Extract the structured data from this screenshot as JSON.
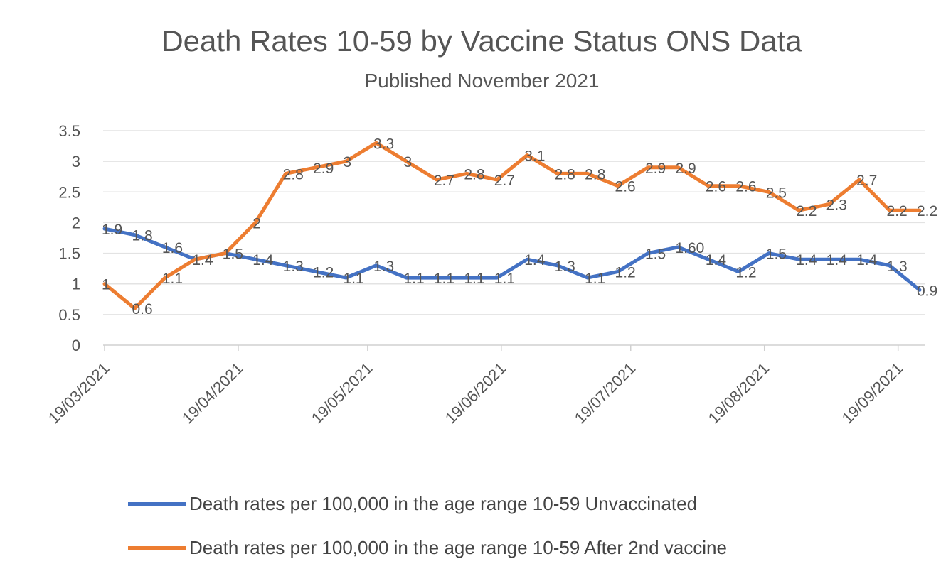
{
  "chart_data": {
    "type": "line",
    "title": "Death Rates 10-59  by Vaccine Status ONS Data",
    "subtitle": "Published November 2021",
    "xlabel": "",
    "ylabel": "",
    "ylim": [
      0,
      3.5
    ],
    "yticks": [
      "0",
      "0.5",
      "1",
      "1.5",
      "2",
      "2.5",
      "3",
      "3.5"
    ],
    "x_start": "19/03/2021",
    "x_step_days": 7,
    "xtick_labels": [
      "19/03/2021",
      "19/04/2021",
      "19/05/2021",
      "19/06/2021",
      "19/07/2021",
      "19/08/2021",
      "19/09/2021"
    ],
    "grid": true,
    "legend_position": "bottom",
    "series": [
      {
        "name": "Death rates per 100,000 in the age range 10-59 Unvaccinated",
        "color": "#4472C4",
        "values": [
          1.9,
          1.8,
          1.6,
          1.4,
          1.5,
          1.4,
          1.3,
          1.2,
          1.1,
          1.3,
          1.1,
          1.1,
          1.1,
          1.1,
          1.4,
          1.3,
          1.1,
          1.2,
          1.5,
          1.6,
          1.4,
          1.2,
          1.5,
          1.4,
          1.4,
          1.4,
          1.3,
          0.9
        ],
        "labels": [
          "1.9",
          "1.8",
          "1.6",
          "1.4",
          "1.5",
          "1.4",
          "1.3",
          "1.2",
          "1.1",
          "1.3",
          "1.1",
          "1.1",
          "1.1",
          "1.1",
          "1.4",
          "1.3",
          "1.1",
          "1.2",
          "1.5",
          "1.60",
          "1.4",
          "1.2",
          "1.5",
          "1.4",
          "1.4",
          "1.4",
          "1.3",
          "0.9"
        ]
      },
      {
        "name": "Death rates per 100,000 in the age range 10-59 After 2nd  vaccine",
        "color": "#ED7D31",
        "values": [
          1,
          0.6,
          1.1,
          1.4,
          1.5,
          2,
          2.8,
          2.9,
          3,
          3.3,
          3,
          2.7,
          2.8,
          2.7,
          3.1,
          2.8,
          2.8,
          2.6,
          2.9,
          2.9,
          2.6,
          2.6,
          2.5,
          2.2,
          2.3,
          2.7,
          2.2,
          2.2
        ],
        "labels": [
          "1",
          "0.6",
          "1.1",
          "1.4",
          "1.5",
          "2",
          "2.8",
          "2.9",
          "3",
          "3.3",
          "3",
          "2.7",
          "2.8",
          "2.7",
          "3.1",
          "2.8",
          "2.8",
          "2.6",
          "2.9",
          "2.9",
          "2.6",
          "2.6",
          "2.5",
          "2.2",
          "2.3",
          "2.7",
          "2.2",
          "2.2"
        ]
      }
    ]
  }
}
